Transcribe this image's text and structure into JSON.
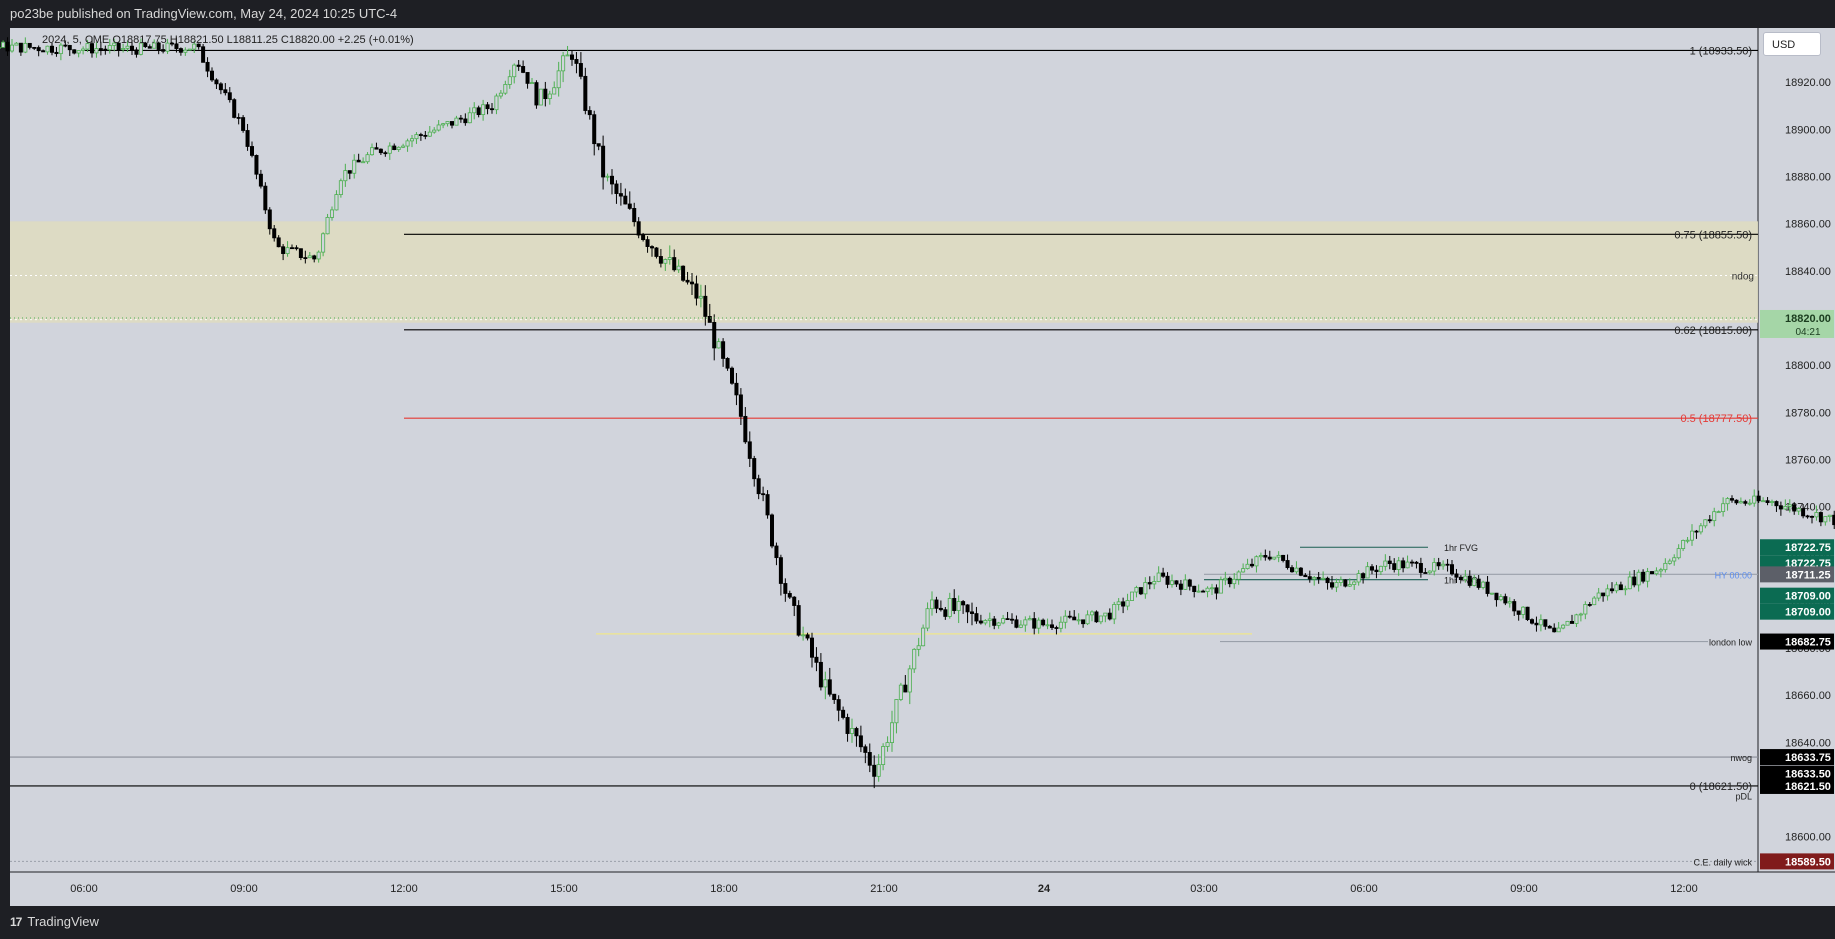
{
  "header": {
    "published_text": "po23be published on TradingView.com, May 24, 2024 10:25 UTC-4"
  },
  "legend": {
    "ohlc_text": "2024, 5, CME  O18817.75  H18821.50  L18811.25  C18820.00  +2.25 (+0.01%)"
  },
  "currency_button": "USD",
  "footer": {
    "brand": "TradingView",
    "logo_glyph": "17"
  },
  "colors": {
    "plot_bg": "#d1d4dc",
    "zone_fill": "#dedcc1",
    "axis_bg": "#d1d4dc",
    "up_candle": "#4caf50",
    "down_candle": "#000000",
    "fib_red": "#e53935",
    "fvg_line": "#1b5e52",
    "fvg_badge": "#0b6b52",
    "london_line": "#f0e68c",
    "hy_label": "#5b8def",
    "ce_badge": "#801b1b",
    "current_badge": "#a5d6a7"
  },
  "chart_data": {
    "type": "candlestick",
    "symbol_interval": "5",
    "exchange": "CME",
    "ylim": [
      18585,
      18943
    ],
    "y_ticks": [
      18600,
      18620,
      18640,
      18660,
      18680,
      18700,
      18720,
      18740,
      18760,
      18780,
      18800,
      18820,
      18840,
      18860,
      18880,
      18900,
      18920
    ],
    "y_tick_labels": [
      "18600.00",
      "18620.00",
      "18640.00",
      "18660.00",
      "18680.00",
      "18700.00",
      "18720.00",
      "18740.00",
      "18760.00",
      "18780.00",
      "18800.00",
      "18820.00",
      "18840.00",
      "18860.00",
      "18880.00",
      "18900.00",
      "18920.00"
    ],
    "x_ticks": [
      {
        "label": "06:00",
        "bold": false
      },
      {
        "label": "09:00",
        "bold": false
      },
      {
        "label": "12:00",
        "bold": false
      },
      {
        "label": "15:00",
        "bold": false
      },
      {
        "label": "18:00",
        "bold": false
      },
      {
        "label": "21:00",
        "bold": false
      },
      {
        "label": "24",
        "bold": true
      },
      {
        "label": "03:00",
        "bold": false
      },
      {
        "label": "06:00",
        "bold": false
      },
      {
        "label": "09:00",
        "bold": false
      },
      {
        "label": "12:00",
        "bold": false
      }
    ],
    "zone": {
      "from": 18818,
      "to": 18861,
      "label": "ndog",
      "mid": 18838
    },
    "levels": [
      {
        "name": "fib-1",
        "price": 18933.5,
        "label": "1 (18933.50)",
        "color": "#000000",
        "x_start_tick": 0,
        "badge": null
      },
      {
        "name": "fib-075",
        "price": 18855.5,
        "label": "0.75 (18855.50)",
        "color": "#000000",
        "x_start_tick": 2,
        "badge": null
      },
      {
        "name": "fib-062",
        "price": 18815.0,
        "label": "0.62 (18815.00)",
        "color": "#000000",
        "x_start_tick": 2,
        "badge": null
      },
      {
        "name": "fib-05",
        "price": 18777.5,
        "label": "0.5 (18777.50)",
        "color": "#e53935",
        "x_start_tick": 2,
        "badge": null
      },
      {
        "name": "fvg-1",
        "price": 18722.75,
        "label": "1hr FVG",
        "color": "#1b5e52",
        "x_start_tick": 7.6,
        "badge": null
      },
      {
        "name": "hy",
        "price": 18711.25,
        "label": "HY 00:00",
        "color": "#9aa0aa",
        "x_start_tick": 7,
        "badge": null
      },
      {
        "name": "fvg-2",
        "price": 18709.0,
        "label": "1hr FVG",
        "color": "#1b5e52",
        "x_start_tick": 7,
        "badge": null
      },
      {
        "name": "london-low",
        "price": 18682.75,
        "label": "london low",
        "color": "#9aa0aa",
        "x_start_tick": 7.1,
        "badge": null
      },
      {
        "name": "nwog",
        "price": 18633.75,
        "label": "nwog",
        "color": "#8a8e98",
        "x_start_tick": -1,
        "badge": null
      },
      {
        "name": "fib-0",
        "price": 18621.5,
        "label": "0 (18621.50)",
        "color": "#000000",
        "x_start_tick": -1,
        "badge": null
      },
      {
        "name": "ce-daily-wick",
        "price": 18589.5,
        "label": "C.E. daily wick",
        "color": "#9aa0aa",
        "x_start_tick": -1,
        "badge": null
      }
    ],
    "extra_labels": [
      {
        "text": "pDL",
        "price": 18617.5
      }
    ],
    "price_badges": [
      {
        "price": 18722.75,
        "text": "18722.75",
        "bg": "#0b6b52",
        "fg": "#ffffff"
      },
      {
        "price": 18722.75,
        "text": "18722.75",
        "bg": "#0b6b52",
        "fg": "#ffffff",
        "offset": 1
      },
      {
        "price": 18711.25,
        "text": "18711.25",
        "bg": "#5c5f68",
        "fg": "#ffffff"
      },
      {
        "price": 18709.0,
        "text": "18709.00",
        "bg": "#0b6b52",
        "fg": "#ffffff",
        "offset": 1
      },
      {
        "price": 18709.0,
        "text": "18709.00",
        "bg": "#0b6b52",
        "fg": "#ffffff",
        "offset": 2
      },
      {
        "price": 18682.75,
        "text": "18682.75",
        "bg": "#000000",
        "fg": "#ffffff"
      },
      {
        "price": 18633.75,
        "text": "18633.75",
        "bg": "#000000",
        "fg": "#ffffff"
      },
      {
        "price": 18633.5,
        "text": "18633.50",
        "bg": "#000000",
        "fg": "#ffffff",
        "offset": 1
      },
      {
        "price": 18621.5,
        "text": "18621.50",
        "bg": "#000000",
        "fg": "#ffffff"
      },
      {
        "price": 18589.5,
        "text": "18589.50",
        "bg": "#801b1b",
        "fg": "#ffffff"
      },
      {
        "price": 18820.0,
        "text": "18820.00",
        "bg": "#a5d6a7",
        "fg": "#1b3d1f",
        "sub": "04:21"
      }
    ],
    "candle_path": [
      [
        -1.45,
        18933
      ],
      [
        -0.5,
        18935
      ],
      [
        0.3,
        18934
      ],
      [
        0.7,
        18935
      ],
      [
        1.0,
        18900
      ],
      [
        1.2,
        18850
      ],
      [
        1.45,
        18845
      ],
      [
        1.6,
        18880
      ],
      [
        1.8,
        18890
      ],
      [
        2.2,
        18900
      ],
      [
        2.55,
        18910
      ],
      [
        2.7,
        18930
      ],
      [
        2.85,
        18912
      ],
      [
        3.05,
        18933
      ],
      [
        3.25,
        18880
      ],
      [
        3.5,
        18855
      ],
      [
        3.85,
        18828
      ],
      [
        4.1,
        18780
      ],
      [
        4.4,
        18700
      ],
      [
        4.65,
        18660
      ],
      [
        4.95,
        18628
      ],
      [
        5.3,
        18700
      ],
      [
        5.55,
        18693
      ],
      [
        6.0,
        18690
      ],
      [
        6.4,
        18694
      ],
      [
        6.7,
        18710
      ],
      [
        7.05,
        18704
      ],
      [
        7.4,
        18720
      ],
      [
        7.8,
        18706
      ],
      [
        8.15,
        18716
      ],
      [
        8.55,
        18713
      ],
      [
        8.85,
        18702
      ],
      [
        9.2,
        18685
      ],
      [
        9.45,
        18702
      ],
      [
        9.85,
        18714
      ],
      [
        10.25,
        18742
      ],
      [
        10.55,
        18742
      ],
      [
        11.0,
        18733
      ],
      [
        11.3,
        18742
      ],
      [
        11.7,
        18755
      ],
      [
        12.0,
        18747
      ],
      [
        12.3,
        18755
      ],
      [
        12.6,
        18738
      ],
      [
        12.9,
        18767
      ],
      [
        13.3,
        18752
      ],
      [
        13.6,
        18756
      ],
      [
        13.9,
        18745
      ],
      [
        14.2,
        18775
      ],
      [
        14.35,
        18790
      ],
      [
        14.45,
        18802
      ],
      [
        14.55,
        18810
      ],
      [
        14.7,
        18819
      ]
    ],
    "current": {
      "price": 18820.0,
      "countdown": "04:21"
    }
  }
}
